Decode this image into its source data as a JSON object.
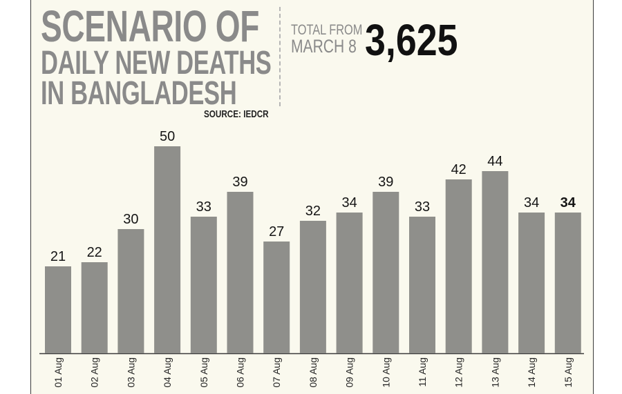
{
  "title_lines": [
    "SCENARIO OF",
    "DAILY NEW DEATHS",
    "IN BANGLADESH"
  ],
  "source": "SOURCE: IEDCR",
  "total": {
    "label_line1": "TOTAL FROM",
    "label_line2": "MARCH 8",
    "value": "3,625"
  },
  "colors": {
    "bar": "#8f8f8b",
    "background": "#faf9ee",
    "title": "#8a8a8a",
    "text": "#111111"
  },
  "chart_data": {
    "type": "bar",
    "categories": [
      "01 Aug",
      "02 Aug",
      "03 Aug",
      "04 Aug",
      "05 Aug",
      "06 Aug",
      "07 Aug",
      "08 Aug",
      "09 Aug",
      "10 Aug",
      "11 Aug",
      "12 Aug",
      "13 Aug",
      "14 Aug",
      "15 Aug"
    ],
    "values": [
      21,
      22,
      30,
      50,
      33,
      39,
      27,
      32,
      34,
      39,
      33,
      42,
      44,
      34,
      34
    ],
    "data_labels": [
      "21",
      "22",
      "30",
      "50",
      "33",
      "39",
      "27",
      "32",
      "34",
      "39",
      "33",
      "42",
      "44",
      "34",
      "34"
    ],
    "highlighted_label_index": 14,
    "ylim": [
      0,
      50
    ],
    "grid": false,
    "legend": false
  }
}
